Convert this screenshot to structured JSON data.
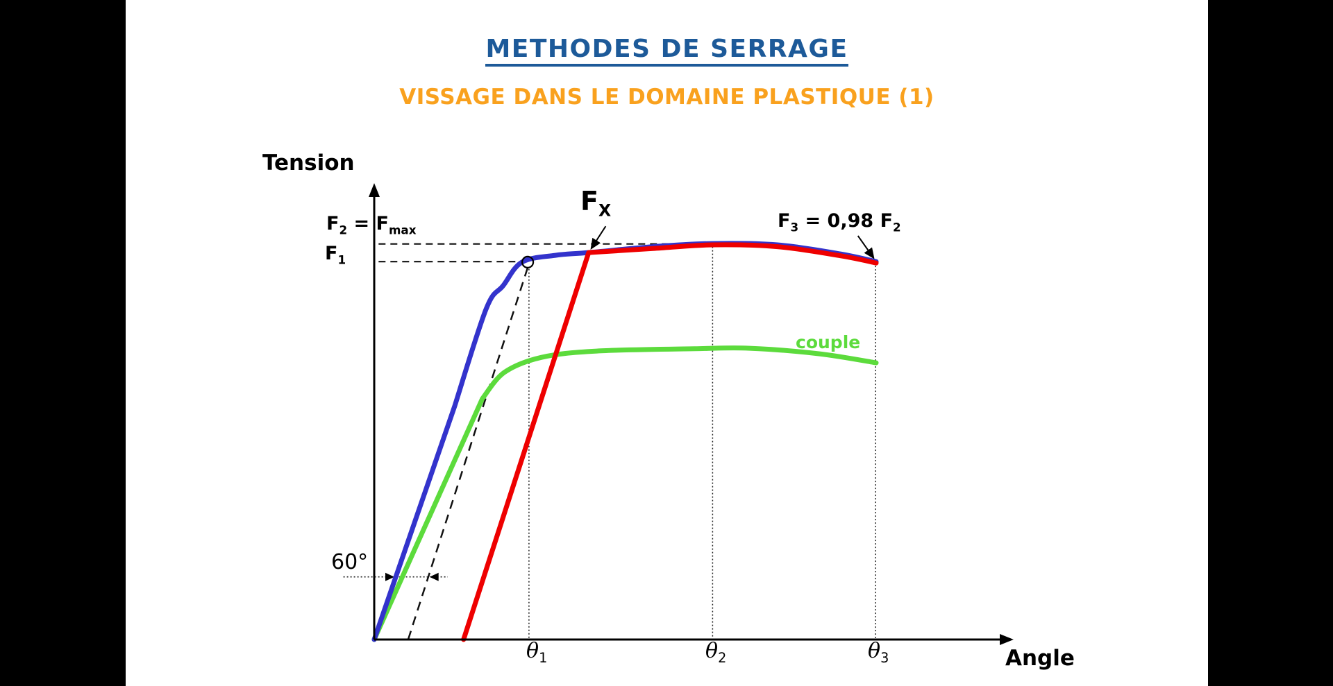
{
  "slide": {
    "title": "METHODES DE SERRAGE",
    "subtitle": "VISSAGE DANS LE DOMAINE PLASTIQUE (1)"
  },
  "colors": {
    "title_blue": "#1D5A99",
    "subtitle_orange": "#F9A11E",
    "tension_curve_blue": "#3333CC",
    "fx_curve_red": "#EE0000",
    "couple_curve_green": "#5CDB3C",
    "background_bars": "#000000",
    "slide_background": "#FFFFFF"
  },
  "chart": {
    "labels": {
      "tension": "Tension",
      "angle": "Angle",
      "f2_eq_fmax": {
        "p1": "F",
        "s1": "2",
        "p2": " = ",
        "p3": "F",
        "s2": "max"
      },
      "f1": {
        "p1": "F",
        "s1": "1"
      },
      "fx": {
        "p1": "F",
        "s1": "X"
      },
      "f3": {
        "p1": "F",
        "s1": "3",
        "p2": " = 0,98 ",
        "p3": "F",
        "s2": "2"
      },
      "couple": "couple",
      "deg60": "60°",
      "theta1": {
        "p1": "θ",
        "s1": "1"
      },
      "theta2": {
        "p1": "θ",
        "s1": "2"
      },
      "theta3": {
        "p1": "θ",
        "s1": "3"
      }
    }
  },
  "chart_data": {
    "type": "line",
    "title": "",
    "xlabel": "Angle",
    "ylabel": "Tension",
    "x_axis_marks": [
      "θ1",
      "θ2",
      "θ3"
    ],
    "y_axis_marks": [
      "F1",
      "F2 = Fmax"
    ],
    "relations": [
      "F2 = Fmax reached at θ2 (top of tension curve)",
      "F3 = 0,98 F2 at θ3 (end of curve)",
      "F1 at θ1: circled intersection of dashed offset line with tension curve",
      "60° horizontal offset between elastic slope and dashed parallel line",
      "red Fx line rises steeply and joins tension curve just under Fmax",
      "green couple (torque) curve flattens near θ2 then drops slightly"
    ],
    "coords_note": "all points normalized to the axis box: x = 0..1 along Angle axis, y = 0..1 along Tension axis",
    "series": [
      {
        "id": "couple",
        "name": "couple",
        "color": "#5CDB3C",
        "width": 7,
        "segments": [
          {
            "type": "line",
            "points": [
              [
                0,
                0
              ],
              [
                0.172,
                0.531
              ]
            ]
          },
          {
            "type": "smooth",
            "points": [
              [
                0.172,
                0.531
              ],
              [
                0.207,
                0.589
              ],
              [
                0.266,
                0.622
              ],
              [
                0.354,
                0.636
              ],
              [
                0.509,
                0.641
              ],
              [
                0.597,
                0.642
              ],
              [
                0.707,
                0.63
              ],
              [
                0.798,
                0.61
              ]
            ]
          }
        ]
      },
      {
        "id": "tension",
        "name": "tension",
        "color": "#3333CC",
        "width": 7,
        "segments": [
          {
            "type": "line",
            "points": [
              [
                0,
                0
              ],
              [
                0.128,
                0.515
              ]
            ]
          },
          {
            "type": "smooth",
            "points": [
              [
                0.128,
                0.515
              ],
              [
                0.178,
                0.729
              ],
              [
                0.205,
                0.78
              ],
              [
                0.235,
                0.832
              ],
              [
                0.288,
                0.847
              ],
              [
                0.341,
                0.853
              ],
              [
                0.443,
                0.866
              ],
              [
                0.538,
                0.873
              ],
              [
                0.641,
                0.87
              ],
              [
                0.741,
                0.85
              ],
              [
                0.798,
                0.833
              ]
            ]
          }
        ]
      },
      {
        "id": "fx",
        "name": "Fx",
        "color": "#EE0000",
        "width": 7,
        "segments": [
          {
            "type": "line",
            "points": [
              [
                0.142,
                0
              ],
              [
                0.341,
                0.853
              ]
            ]
          },
          {
            "type": "smooth",
            "points": [
              [
                0.341,
                0.853
              ],
              [
                0.443,
                0.862
              ],
              [
                0.538,
                0.87
              ],
              [
                0.641,
                0.866
              ],
              [
                0.741,
                0.846
              ],
              [
                0.798,
                0.83
              ]
            ]
          }
        ]
      }
    ],
    "guides": {
      "h_dashed": [
        {
          "id": "f2-level-guide",
          "y": 0.872,
          "x1": 0.007,
          "x2": 0.544
        },
        {
          "id": "f1-level-guide",
          "y": 0.833,
          "x1": 0.007,
          "x2": 0.234
        }
      ],
      "tangent_dashed": {
        "id": "offset-tangent-line",
        "x1": 0.054,
        "y1": 0.0,
        "x2": 0.244,
        "y2": 0.82
      },
      "v_dotted": [
        {
          "id": "theta1-dotted-line",
          "x": 0.246,
          "y_top": 0.817
        },
        {
          "id": "theta2-dotted-line",
          "x": 0.538,
          "y_top": 0.866
        },
        {
          "id": "theta3-dotted-line",
          "x": 0.797,
          "y_top": 0.824
        }
      ],
      "circle_marker": {
        "x": 0.244,
        "y": 0.832,
        "r": 8
      },
      "measure_60deg": {
        "y": 0.138,
        "x1": -0.049,
        "x2": 0.117,
        "tip_right": 0.032,
        "tip_left": 0.088
      }
    },
    "pointers": [
      {
        "id": "fx-pointer-arrow",
        "x1": 0.368,
        "y1": 0.911,
        "x2": 0.345,
        "y2": 0.862
      },
      {
        "id": "f3-pointer-arrow",
        "x1": 0.769,
        "y1": 0.89,
        "x2": 0.794,
        "y2": 0.841
      }
    ]
  }
}
